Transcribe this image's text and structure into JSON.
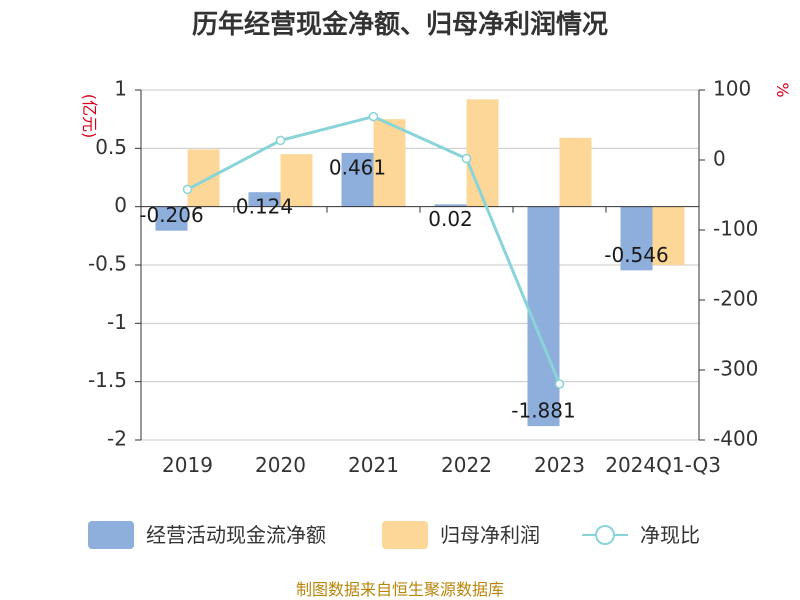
{
  "title": "历年经营现金净额、归母净利润情况",
  "source": "制图数据来自恒生聚源数据库",
  "chart_data": {
    "type": "bar",
    "categories": [
      "2019",
      "2020",
      "2021",
      "2022",
      "2023",
      "2024Q1-Q3"
    ],
    "series": [
      {
        "name": "经营活动现金流净额",
        "kind": "bar",
        "axis": "left",
        "color": "#8eaedc",
        "values": [
          -0.206,
          0.124,
          0.461,
          0.02,
          -1.881,
          -0.546
        ],
        "labels": [
          "-0.206",
          "0.124",
          "0.461",
          "0.02",
          "-1.881",
          "-0.546"
        ]
      },
      {
        "name": "归母净利润",
        "kind": "bar",
        "axis": "left",
        "color": "#fdd797",
        "values": [
          0.49,
          0.45,
          0.75,
          0.92,
          0.59,
          -0.5
        ]
      },
      {
        "name": "净现比",
        "kind": "line",
        "axis": "right",
        "color": "#89d4d9",
        "values": [
          -42,
          28,
          62,
          2,
          -320,
          null
        ]
      }
    ],
    "y_left": {
      "label": "(亿元)",
      "min": -2,
      "max": 1,
      "ticks": [
        1,
        0.5,
        0,
        -0.5,
        -1,
        -1.5,
        -2
      ],
      "tick_labels": [
        "1",
        "0.5",
        "0",
        "-0.5",
        "-1",
        "-1.5",
        "-2"
      ]
    },
    "y_right": {
      "label": "%",
      "min": -400,
      "max": 100,
      "ticks": [
        100,
        0,
        -100,
        -200,
        -300,
        -400
      ],
      "tick_labels": [
        "100",
        "0",
        "-100",
        "-200",
        "-300",
        "-400"
      ]
    },
    "grid": true,
    "legend_position": "bottom"
  }
}
